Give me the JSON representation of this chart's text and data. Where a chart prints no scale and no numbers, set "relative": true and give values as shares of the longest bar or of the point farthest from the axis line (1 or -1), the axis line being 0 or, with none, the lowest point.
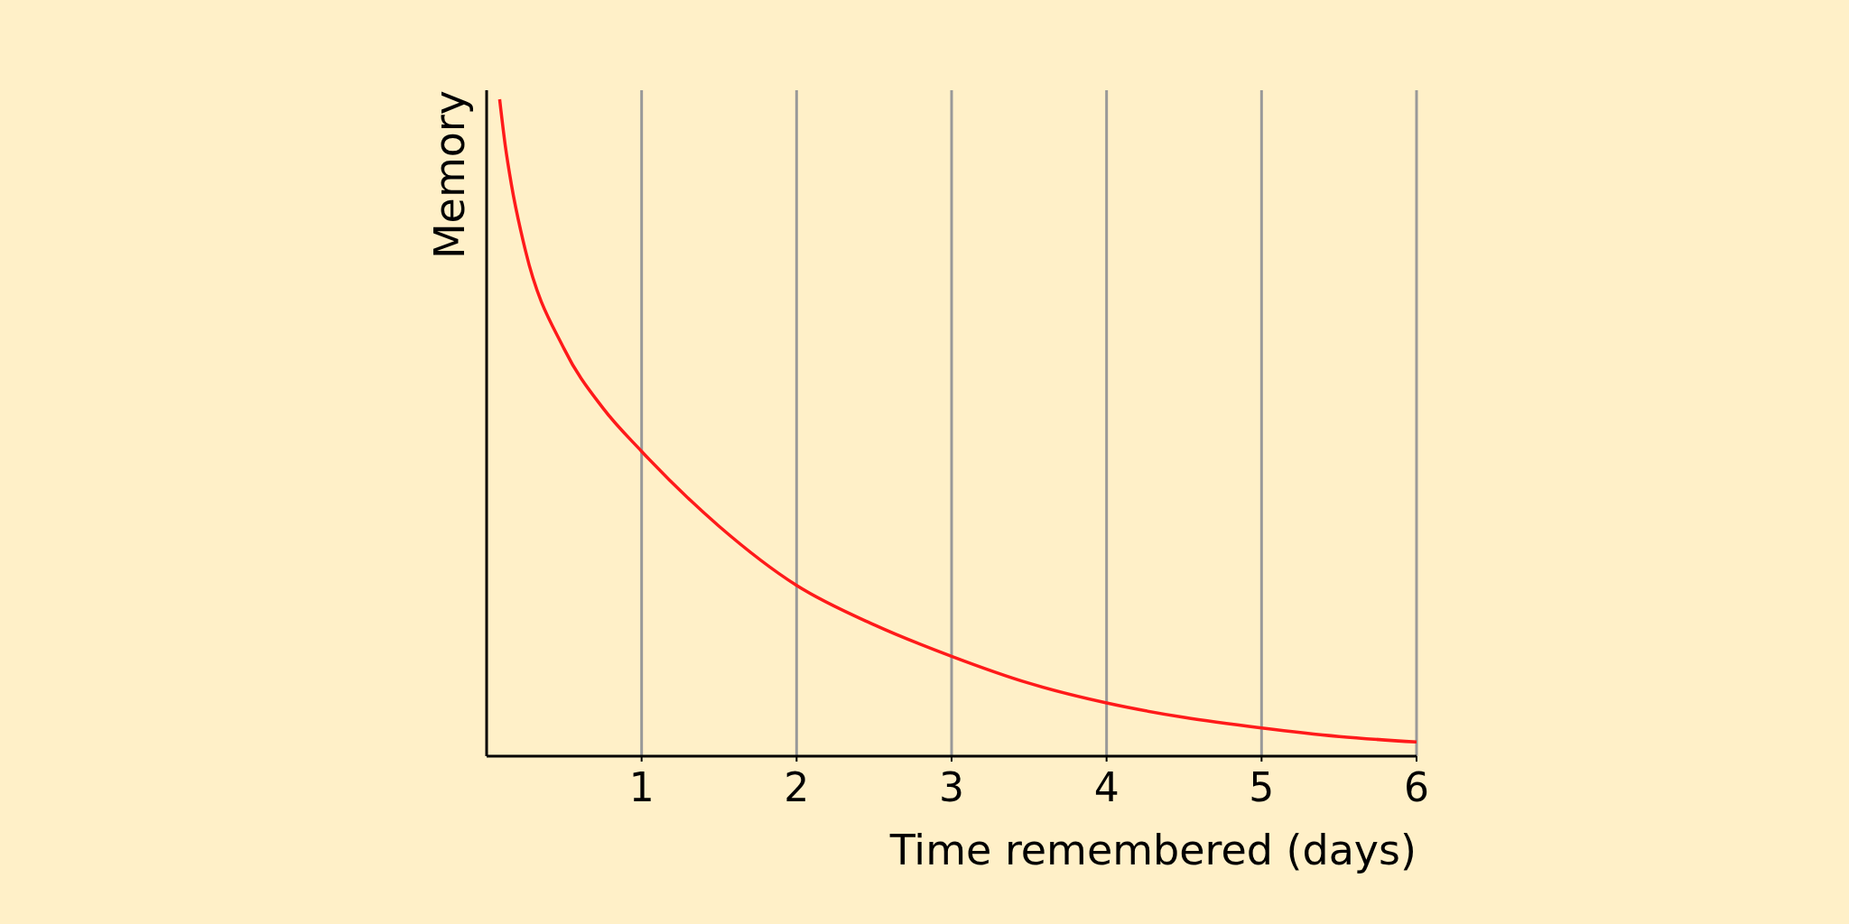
{
  "chart_data": {
    "type": "line",
    "xlabel": "Time remembered (days)",
    "ylabel": "Memory",
    "relative": true,
    "xlim": [
      0,
      6
    ],
    "xticks": [
      1,
      2,
      3,
      4,
      5,
      6
    ],
    "grid": "x",
    "tick_labels": "x",
    "series": [
      {
        "color": "#ff1a1a",
        "x": [
          0.084,
          0.12,
          0.16,
          0.25,
          0.5,
          0.75,
          1,
          1.5,
          2,
          2.5,
          3,
          3.5,
          4,
          4.5,
          5,
          5.5,
          6
        ],
        "values": [
          1,
          0.93,
          0.87,
          0.77,
          0.62,
          0.53,
          0.464,
          0.35,
          0.26,
          0.2,
          0.152,
          0.111,
          0.081,
          0.059,
          0.043,
          0.03,
          0.0215
        ]
      }
    ]
  }
}
